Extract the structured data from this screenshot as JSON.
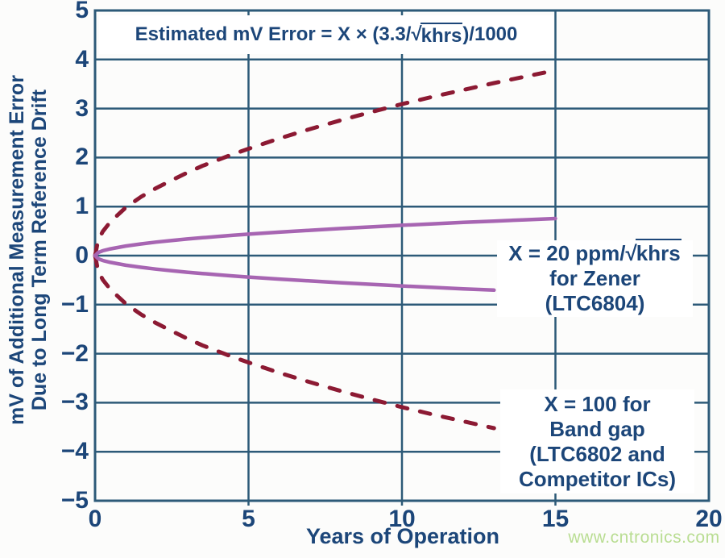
{
  "colors": {
    "navy_text": "#1c4679",
    "grid": "#2d5a78",
    "bandgap_red": "#8c1a33",
    "zener_purple": "#a765b2",
    "watermark_green": "#b9dd92",
    "background": "#fcfcfb",
    "box_background": "#ffffff"
  },
  "formula": {
    "prefix": "Estimated mV Error = X × (3.3/",
    "radical": "√",
    "radicand": "khrs",
    "suffix": ")/1000"
  },
  "annotations": {
    "zener": {
      "line1_prefix": "X = 20 ppm/",
      "line1_radical": "√",
      "line1_radicand": "khrs",
      "line2": "for Zener",
      "line3": "(LTC6804)"
    },
    "bandgap": {
      "line1": "X = 100 for",
      "line2": "Band gap",
      "line3": "(LTC6802 and",
      "line4": "Competitor ICs)"
    }
  },
  "axis_titles": {
    "x": "Years of Operation",
    "y_line1": "mV of Additional Measurement Error",
    "y_line2": "Due to Long Term Reference Drift"
  },
  "watermark": "www.cntronics.com",
  "chart_data": {
    "type": "line",
    "title": "Estimated mV Error = X × (3.3/√khrs)/1000",
    "xlabel": "Years of Operation",
    "ylabel": "mV of Additional Measurement Error Due to Long Term Reference Drift",
    "xlim": [
      0,
      20
    ],
    "ylim": [
      -5,
      5
    ],
    "grid": true,
    "x_ticks": [
      0,
      5,
      10,
      15,
      20
    ],
    "x_tick_labels": [
      "0",
      "5",
      "10",
      "15",
      "20"
    ],
    "y_ticks": [
      5,
      4,
      3,
      2,
      1,
      0,
      -1,
      -2,
      -3,
      -4,
      -5
    ],
    "y_tick_labels": [
      "5",
      "4",
      "3",
      "2",
      "1",
      "0",
      "−1",
      "−2",
      "−3",
      "−4",
      "−5"
    ],
    "series": [
      {
        "name": "X = 100 Band gap (LTC6802 and Competitor ICs) — upper branch",
        "style": "dashed",
        "color_key": "bandgap_red",
        "x": [
          0,
          0.1,
          0.25,
          0.5,
          1,
          1.5,
          2,
          2.5,
          3,
          3.5,
          4,
          4.5,
          5,
          6,
          7,
          8,
          9,
          10,
          11,
          12,
          13,
          14,
          15
        ],
        "y": [
          0,
          0.31,
          0.49,
          0.69,
          0.98,
          1.2,
          1.38,
          1.54,
          1.69,
          1.83,
          1.95,
          2.07,
          2.18,
          2.39,
          2.58,
          2.76,
          2.93,
          3.09,
          3.24,
          3.38,
          3.52,
          3.65,
          3.78
        ]
      },
      {
        "name": "X = 100 Band gap (LTC6802 and Competitor ICs) — lower branch",
        "style": "dashed",
        "color_key": "bandgap_red",
        "x": [
          0,
          0.1,
          0.25,
          0.5,
          1,
          1.5,
          2,
          2.5,
          3,
          3.5,
          4,
          4.5,
          5,
          6,
          7,
          8,
          9,
          10,
          11,
          12,
          13
        ],
        "y": [
          0,
          -0.31,
          -0.49,
          -0.69,
          -0.98,
          -1.2,
          -1.38,
          -1.54,
          -1.69,
          -1.83,
          -1.95,
          -2.07,
          -2.18,
          -2.39,
          -2.58,
          -2.76,
          -2.93,
          -3.09,
          -3.24,
          -3.38,
          -3.52
        ]
      },
      {
        "name": "X = 20 ppm/√khrs Zener (LTC6804) — upper branch",
        "style": "solid",
        "color_key": "zener_purple",
        "x": [
          0,
          0.1,
          0.25,
          0.5,
          1,
          1.5,
          2,
          2.5,
          3,
          3.5,
          4,
          4.5,
          5,
          6,
          7,
          8,
          9,
          10,
          11,
          12,
          13,
          14,
          15
        ],
        "y": [
          0,
          0.062,
          0.098,
          0.138,
          0.195,
          0.239,
          0.276,
          0.309,
          0.338,
          0.365,
          0.391,
          0.414,
          0.437,
          0.479,
          0.517,
          0.553,
          0.586,
          0.618,
          0.648,
          0.677,
          0.704,
          0.731,
          0.757
        ]
      },
      {
        "name": "X = 20 ppm/√khrs Zener (LTC6804) — lower branch",
        "style": "solid",
        "color_key": "zener_purple",
        "x": [
          0,
          0.1,
          0.25,
          0.5,
          1,
          1.5,
          2,
          2.5,
          3,
          3.5,
          4,
          4.5,
          5,
          6,
          7,
          8,
          9,
          10,
          11,
          12,
          13
        ],
        "y": [
          0,
          -0.062,
          -0.098,
          -0.138,
          -0.195,
          -0.239,
          -0.276,
          -0.309,
          -0.338,
          -0.365,
          -0.391,
          -0.414,
          -0.437,
          -0.479,
          -0.517,
          -0.553,
          -0.586,
          -0.618,
          -0.648,
          -0.677,
          -0.704
        ]
      }
    ]
  }
}
